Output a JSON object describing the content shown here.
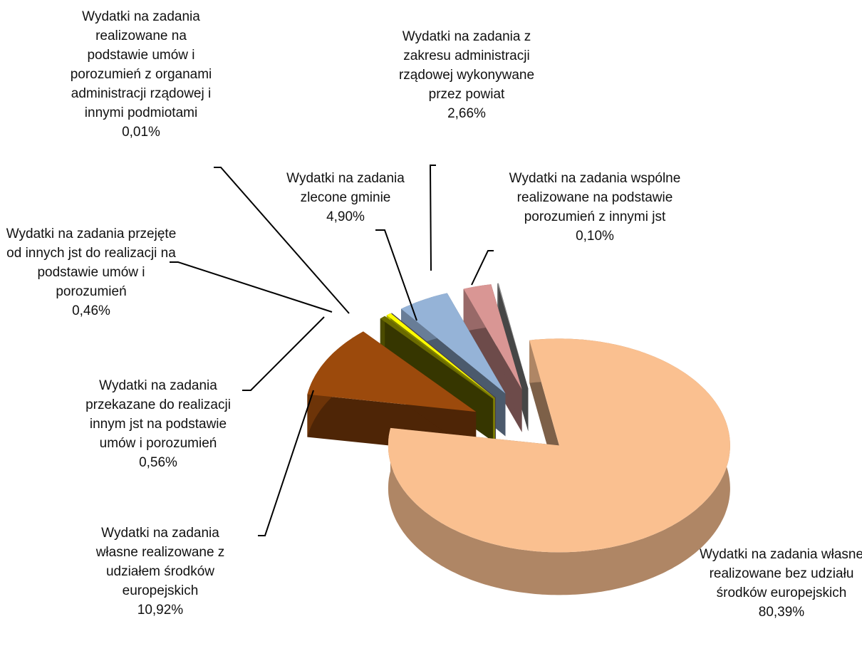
{
  "chart_data": {
    "type": "pie",
    "categories": [
      "Wydatki na zadania własne realizowane bez udziału środków europejskich",
      "Wydatki na zadania własne realizowane z udziałem środków europejskich",
      "Wydatki na zadania przekazane do realizacji innym jst na podstawie umów i porozumień",
      "Wydatki na zadania przejęte od innych jst do realizacji na podstawie umów i porozumień",
      "Wydatki na zadania realizowane na podstawie umów i porozumień z organami administracji rządowej i innymi podmiotami",
      "Wydatki na zadania zlecone gminie",
      "Wydatki na zadania z zakresu administracji rządowej wykonywane przez powiat",
      "Wydatki na zadania wspólne realizowane na podstawie porozumień z innymi jst"
    ],
    "values": [
      80.39,
      10.92,
      0.56,
      0.46,
      0.01,
      4.9,
      2.66,
      0.1
    ],
    "value_labels": [
      "80,39%",
      "10,92%",
      "0,56%",
      "0,46%",
      "0,01%",
      "4,90%",
      "2,66%",
      "0,10%"
    ],
    "colors": [
      "#fac090",
      "#9c4a0c",
      "#6b6b00",
      "#ffff00",
      "#8b7f96",
      "#95b3d7",
      "#d99694",
      "#8c8c8c"
    ]
  }
}
